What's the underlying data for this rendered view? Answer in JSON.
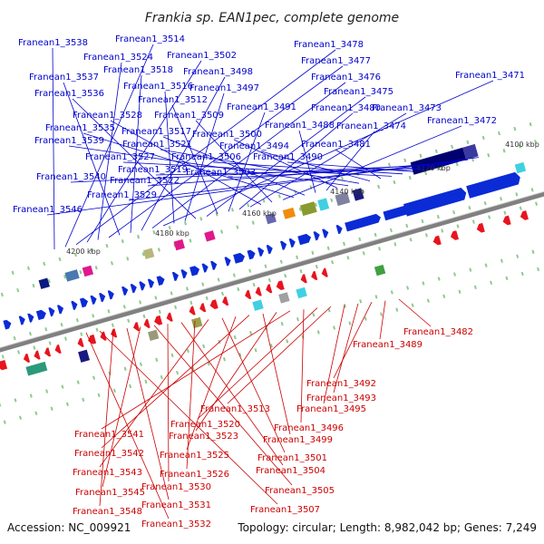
{
  "title": "Frankia sp. EAN1pec, complete genome",
  "footer": {
    "accession": "Accession: NC_009921",
    "info": "Topology: circular; Length: 8,982,042 bp; Genes: 7,249"
  },
  "scale_labels": [
    "4100 kbp",
    "4120 kbp",
    "4140 kbp",
    "4160 kbp",
    "4180 kbp",
    "4200 kbp"
  ],
  "top_labels": [
    "Franean1_3538",
    "Franean1_3514",
    "Franean1_3478",
    "Franean1_3502",
    "Franean1_3524",
    "Franean1_3477",
    "Franean1_3537",
    "Franean1_3518",
    "Franean1_3498",
    "Franean1_3476",
    "Franean1_3471",
    "Franean1_3516",
    "Franean1_3497",
    "Franean1_3536",
    "Franean1_3475",
    "Franean1_3512",
    "Franean1_3491",
    "Franean1_3480",
    "Franean1_3473",
    "Franean1_3528",
    "Franean1_3509",
    "Franean1_3472",
    "Franean1_3535",
    "Franean1_3517",
    "Franean1_3488",
    "Franean1_3474",
    "Franean1_3500",
    "Franean1_3539",
    "Franean1_3521",
    "Franean1_3494",
    "Franean1_3481",
    "Franean1_3527",
    "Franean1_3506",
    "Franean1_3490",
    "Franean1_3519",
    "Franean1_3503",
    "Franean1_3540",
    "Franean1_3522",
    "Franean1_3529",
    "Franean1_3546"
  ],
  "bottom_labels": [
    "Franean1_3482",
    "Franean1_3489",
    "Franean1_3492",
    "Franean1_3493",
    "Franean1_3495",
    "Franean1_3513",
    "Franean1_3520",
    "Franean1_3496",
    "Franean1_3541",
    "Franean1_3523",
    "Franean1_3499",
    "Franean1_3542",
    "Franean1_3525",
    "Franean1_3501",
    "Franean1_3543",
    "Franean1_3526",
    "Franean1_3504",
    "Franean1_3530",
    "Franean1_3505",
    "Franean1_3545",
    "Franean1_3531",
    "Franean1_3548",
    "Franean1_3507",
    "Franean1_3532"
  ],
  "colors": {
    "forward_gene": "#0a2bd6",
    "reverse_gene": "#e8141e",
    "top_label": "#0000cc",
    "bottom_label": "#cc0000",
    "backbone": "#808080",
    "tick": "#2a8a2a"
  }
}
